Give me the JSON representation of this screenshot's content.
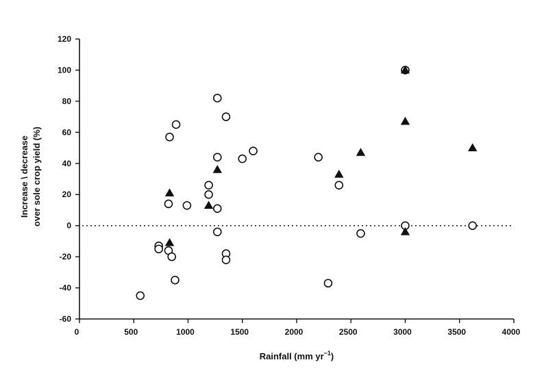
{
  "chart_data": {
    "type": "scatter",
    "title": "",
    "xlabel": "Rainfall (mm yr",
    "xlabel_superscript": "−1",
    "xlabel_suffix": ")",
    "ylabel_lines": [
      "Increase \\ decrease",
      "over sole crop yield (%)"
    ],
    "xlim": [
      0,
      4000
    ],
    "ylim": [
      -60,
      120
    ],
    "xticks": [
      0,
      500,
      1000,
      1500,
      2000,
      2500,
      3000,
      3500,
      4000
    ],
    "yticks": [
      -60,
      -40,
      -20,
      0,
      20,
      40,
      60,
      80,
      100,
      120
    ],
    "reference_line": {
      "y": 0,
      "style": "dotted"
    },
    "series": [
      {
        "name": "open circles",
        "marker": "circle",
        "points": [
          [
            560,
            -45
          ],
          [
            730,
            -13
          ],
          [
            730,
            -15
          ],
          [
            820,
            -16
          ],
          [
            850,
            -20
          ],
          [
            880,
            -35
          ],
          [
            820,
            14
          ],
          [
            830,
            57
          ],
          [
            890,
            65
          ],
          [
            990,
            13
          ],
          [
            1190,
            26
          ],
          [
            1190,
            20
          ],
          [
            1270,
            82
          ],
          [
            1270,
            44
          ],
          [
            1270,
            11
          ],
          [
            1270,
            -4
          ],
          [
            1350,
            70
          ],
          [
            1350,
            -18
          ],
          [
            1350,
            -22
          ],
          [
            1500,
            43
          ],
          [
            1600,
            48
          ],
          [
            2200,
            44
          ],
          [
            2290,
            -37
          ],
          [
            2390,
            26
          ],
          [
            2590,
            -5
          ],
          [
            3000,
            100
          ],
          [
            3000,
            0
          ],
          [
            3620,
            0
          ]
        ]
      },
      {
        "name": "filled triangles",
        "marker": "triangle",
        "points": [
          [
            830,
            21
          ],
          [
            830,
            -11
          ],
          [
            1190,
            13
          ],
          [
            1270,
            36
          ],
          [
            2390,
            33
          ],
          [
            2590,
            47
          ],
          [
            3000,
            100
          ],
          [
            3000,
            67
          ],
          [
            3000,
            -4
          ],
          [
            3620,
            50
          ]
        ]
      }
    ]
  }
}
